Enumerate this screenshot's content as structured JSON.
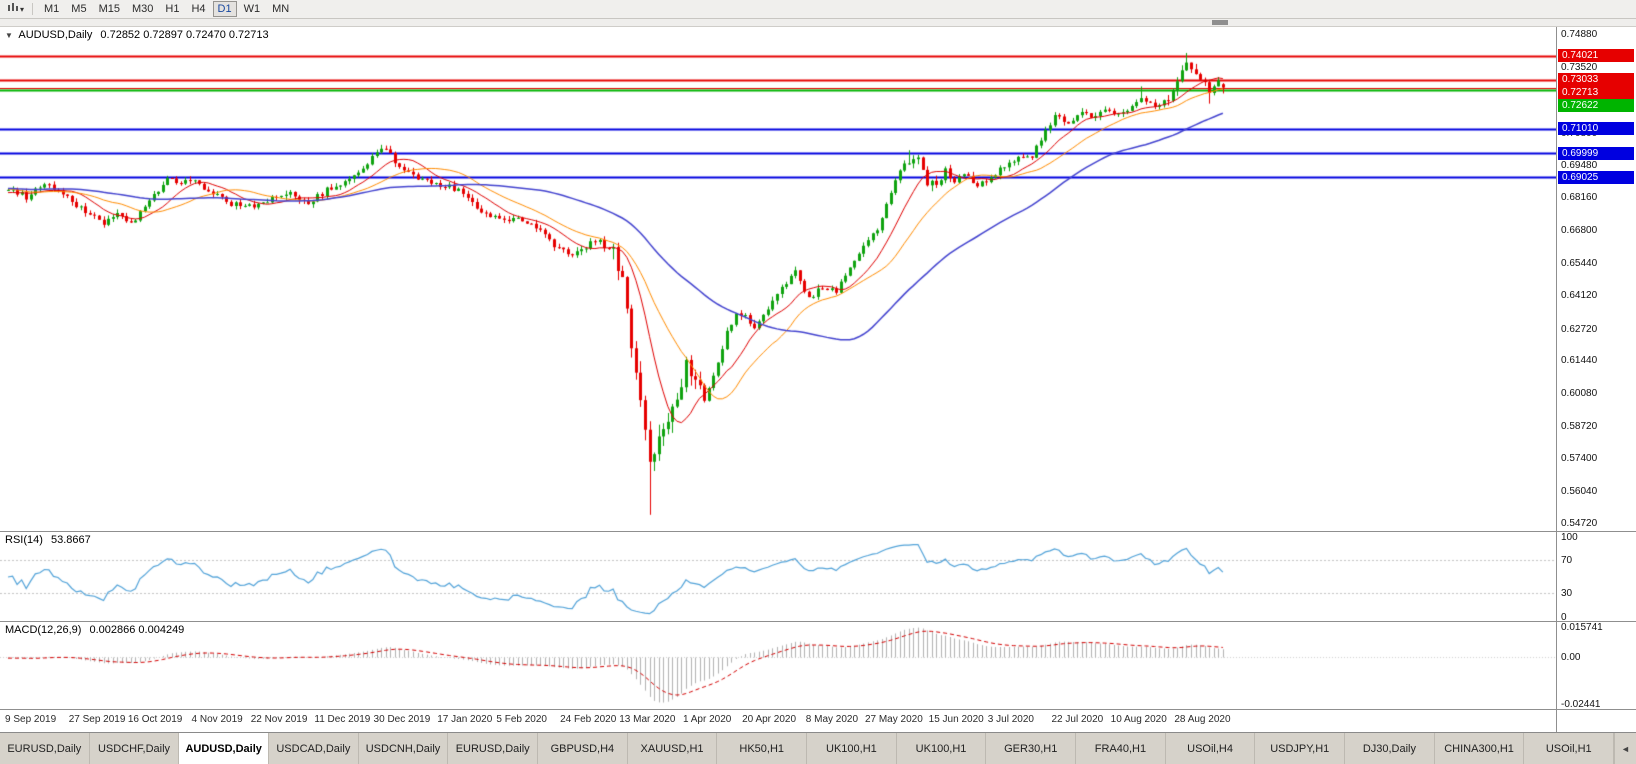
{
  "icons": {
    "chart_type_menu": "bar-chart-icon",
    "toolbar_caret": "▾",
    "symbol_dropdown": "▼",
    "tabs_scroll_left": "◄"
  },
  "toolbar": {
    "timeframes": [
      {
        "label": "M1",
        "active": false
      },
      {
        "label": "M5",
        "active": false
      },
      {
        "label": "M15",
        "active": false
      },
      {
        "label": "M30",
        "active": false
      },
      {
        "label": "H1",
        "active": false
      },
      {
        "label": "H4",
        "active": false
      },
      {
        "label": "D1",
        "active": true
      },
      {
        "label": "W1",
        "active": false
      },
      {
        "label": "MN",
        "active": false
      }
    ]
  },
  "main_chart": {
    "symbol_label": "AUDUSD,Daily",
    "ohlc_text": "0.72852 0.72897 0.72470 0.72713",
    "price_axis": {
      "min": 0.5472,
      "max": 0.7488,
      "ticks": [
        "0.74880",
        "0.73520",
        "0.72160",
        "0.70800",
        "0.69480",
        "0.68160",
        "0.66800",
        "0.65440",
        "0.64120",
        "0.62720",
        "0.61440",
        "0.60080",
        "0.58720",
        "0.57400",
        "0.56040",
        "0.54720"
      ]
    },
    "levels": [
      {
        "price": 0.74021,
        "label": "0.74021",
        "color": "#e60000",
        "width": 2,
        "kind": "resistance-line"
      },
      {
        "price": 0.73033,
        "label": "0.73033",
        "color": "#e60000",
        "width": 2,
        "kind": "resistance-line"
      },
      {
        "price": 0.72713,
        "label": "0.72713",
        "color": "#e60000",
        "width": 1,
        "kind": "current-price-line"
      },
      {
        "price": 0.72622,
        "label": "0.72622",
        "color": "#00b400",
        "width": 2,
        "kind": "support-line"
      },
      {
        "price": 0.7101,
        "label": "0.71010",
        "color": "#0000e0",
        "width": 2,
        "kind": "support-line"
      },
      {
        "price": 0.69999,
        "label": "0.69999",
        "color": "#0000e0",
        "width": 2,
        "kind": "support-line"
      },
      {
        "price": 0.69025,
        "label": "0.69025",
        "color": "#0000e0",
        "width": 2,
        "kind": "support-line"
      }
    ]
  },
  "rsi_panel": {
    "name": "RSI(14)",
    "value": "53.8667",
    "axis_ticks": [
      "100",
      "70",
      "30",
      "0"
    ],
    "level_lines": [
      70,
      30
    ],
    "line_color": "#52a3d9"
  },
  "macd_panel": {
    "name": "MACD(12,26,9)",
    "values": "0.002866 0.004249",
    "axis_top": "0.015741",
    "axis_zero": "0.00",
    "axis_bottom": "-0.02441",
    "range_max": 0.0157,
    "range_min": -0.0244,
    "histogram_color": "#b2b2b2",
    "signal_color": "#d40000"
  },
  "date_axis": {
    "ticks": [
      {
        "label": "9 Sep 2019",
        "bar": 0
      },
      {
        "label": "27 Sep 2019",
        "bar": 14
      },
      {
        "label": "16 Oct 2019",
        "bar": 27
      },
      {
        "label": "4 Nov 2019",
        "bar": 41
      },
      {
        "label": "22 Nov 2019",
        "bar": 54
      },
      {
        "label": "11 Dec 2019",
        "bar": 68
      },
      {
        "label": "30 Dec 2019",
        "bar": 81
      },
      {
        "label": "17 Jan 2020",
        "bar": 95
      },
      {
        "label": "5 Feb 2020",
        "bar": 108
      },
      {
        "label": "24 Feb 2020",
        "bar": 122
      },
      {
        "label": "13 Mar 2020",
        "bar": 135
      },
      {
        "label": "1 Apr 2020",
        "bar": 149
      },
      {
        "label": "20 Apr 2020",
        "bar": 162
      },
      {
        "label": "8 May 2020",
        "bar": 176
      },
      {
        "label": "27 May 2020",
        "bar": 189
      },
      {
        "label": "15 Jun 2020",
        "bar": 203
      },
      {
        "label": "3 Jul 2020",
        "bar": 216
      },
      {
        "label": "22 Jul 2020",
        "bar": 230
      },
      {
        "label": "10 Aug 2020",
        "bar": 243
      },
      {
        "label": "28 Aug 2020",
        "bar": 257
      }
    ]
  },
  "chart_data": {
    "type": "candlestick",
    "symbol": "AUDUSD",
    "timeframe": "Daily",
    "bars": 268,
    "price_range": [
      0.5472,
      0.7488
    ],
    "colors": {
      "up": "#0fa30f",
      "down": "#e60000"
    },
    "close_keypoints": [
      [
        0,
        0.686
      ],
      [
        4,
        0.682
      ],
      [
        8,
        0.6872
      ],
      [
        12,
        0.683
      ],
      [
        17,
        0.6762
      ],
      [
        21,
        0.6715
      ],
      [
        24,
        0.6758
      ],
      [
        27,
        0.6712
      ],
      [
        31,
        0.68
      ],
      [
        35,
        0.6888
      ],
      [
        41,
        0.6878
      ],
      [
        45,
        0.6842
      ],
      [
        49,
        0.6792
      ],
      [
        54,
        0.6786
      ],
      [
        58,
        0.6812
      ],
      [
        62,
        0.6842
      ],
      [
        66,
        0.6792
      ],
      [
        70,
        0.685
      ],
      [
        74,
        0.6882
      ],
      [
        78,
        0.6938
      ],
      [
        81,
        0.7
      ],
      [
        83,
        0.7018
      ],
      [
        86,
        0.6942
      ],
      [
        90,
        0.6902
      ],
      [
        95,
        0.6872
      ],
      [
        99,
        0.685
      ],
      [
        103,
        0.6772
      ],
      [
        108,
        0.6722
      ],
      [
        112,
        0.6742
      ],
      [
        116,
        0.6692
      ],
      [
        120,
        0.6622
      ],
      [
        124,
        0.6572
      ],
      [
        127,
        0.6618
      ],
      [
        130,
        0.6642
      ],
      [
        133,
        0.658
      ],
      [
        135,
        0.6482
      ],
      [
        137,
        0.618
      ],
      [
        139,
        0.5982
      ],
      [
        141,
        0.5742
      ],
      [
        143,
        0.5822
      ],
      [
        145,
        0.5902
      ],
      [
        147,
        0.6002
      ],
      [
        149,
        0.6128
      ],
      [
        151,
        0.6052
      ],
      [
        153,
        0.5982
      ],
      [
        155,
        0.6082
      ],
      [
        158,
        0.6258
      ],
      [
        160,
        0.6348
      ],
      [
        162,
        0.6332
      ],
      [
        164,
        0.6272
      ],
      [
        167,
        0.6368
      ],
      [
        170,
        0.6438
      ],
      [
        173,
        0.6508
      ],
      [
        176,
        0.6402
      ],
      [
        179,
        0.6448
      ],
      [
        182,
        0.6432
      ],
      [
        185,
        0.6528
      ],
      [
        189,
        0.6638
      ],
      [
        192,
        0.6722
      ],
      [
        195,
        0.6898
      ],
      [
        198,
        0.6972
      ],
      [
        200,
        0.6998
      ],
      [
        202,
        0.6882
      ],
      [
        204,
        0.6852
      ],
      [
        206,
        0.6928
      ],
      [
        208,
        0.6872
      ],
      [
        210,
        0.6918
      ],
      [
        213,
        0.6862
      ],
      [
        216,
        0.6898
      ],
      [
        219,
        0.6948
      ],
      [
        222,
        0.6978
      ],
      [
        225,
        0.6992
      ],
      [
        228,
        0.7088
      ],
      [
        230,
        0.7158
      ],
      [
        233,
        0.7122
      ],
      [
        236,
        0.7178
      ],
      [
        239,
        0.7142
      ],
      [
        241,
        0.7188
      ],
      [
        243,
        0.7152
      ],
      [
        246,
        0.7172
      ],
      [
        249,
        0.7238
      ],
      [
        252,
        0.7192
      ],
      [
        255,
        0.7228
      ],
      [
        257,
        0.7288
      ],
      [
        259,
        0.7372
      ],
      [
        261,
        0.7322
      ],
      [
        263,
        0.7282
      ],
      [
        264,
        0.725
      ],
      [
        265,
        0.7268
      ],
      [
        266,
        0.729
      ],
      [
        267,
        0.72713
      ]
    ],
    "wick_overrides": {
      "83": {
        "high": 0.7032
      },
      "141": {
        "low": 0.551
      },
      "198": {
        "high": 0.7013
      },
      "249": {
        "high": 0.7276
      },
      "259": {
        "high": 0.7414
      },
      "264": {
        "low": 0.7205
      }
    },
    "last_bar": {
      "open": 0.72852,
      "high": 0.72897,
      "low": 0.7247,
      "close": 0.72713
    },
    "moving_averages": [
      {
        "period": 10,
        "type": "sma",
        "color": "#e00000",
        "width": 1
      },
      {
        "period": 20,
        "type": "sma",
        "color": "#ff8c00",
        "width": 1
      },
      {
        "period": 50,
        "type": "sma",
        "color": "#4343cf",
        "width": 1.5
      }
    ],
    "indicators": {
      "rsi_period": 14,
      "macd_fast": 12,
      "macd_slow": 26,
      "macd_signal": 9
    }
  },
  "bottom_tabs": [
    {
      "label": "EURUSD,Daily",
      "active": false
    },
    {
      "label": "USDCHF,Daily",
      "active": false
    },
    {
      "label": "AUDUSD,Daily",
      "active": true
    },
    {
      "label": "USDCAD,Daily",
      "active": false
    },
    {
      "label": "USDCNH,Daily",
      "active": false
    },
    {
      "label": "EURUSD,Daily",
      "active": false
    },
    {
      "label": "GBPUSD,H4",
      "active": false
    },
    {
      "label": "XAUUSD,H1",
      "active": false
    },
    {
      "label": "HK50,H1",
      "active": false
    },
    {
      "label": "UK100,H1",
      "active": false
    },
    {
      "label": "UK100,H1",
      "active": false
    },
    {
      "label": "GER30,H1",
      "active": false
    },
    {
      "label": "FRA40,H1",
      "active": false
    },
    {
      "label": "USOil,H4",
      "active": false
    },
    {
      "label": "USDJPY,H1",
      "active": false
    },
    {
      "label": "DJ30,Daily",
      "active": false
    },
    {
      "label": "CHINA300,H1",
      "active": false
    },
    {
      "label": "USOil,H1",
      "active": false
    }
  ]
}
